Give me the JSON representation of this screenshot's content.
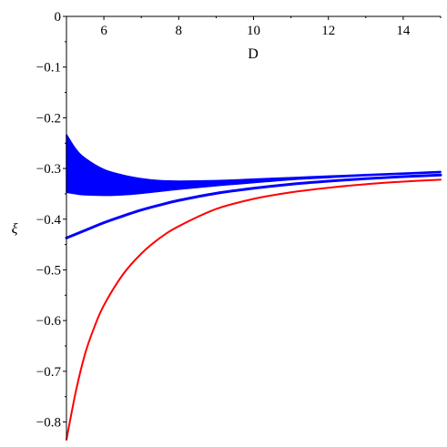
{
  "chart_data": {
    "type": "line",
    "xlabel": "D",
    "ylabel": "ξ",
    "xlim": [
      5,
      15
    ],
    "ylim": [
      -0.835,
      0
    ],
    "xticks": [
      6,
      8,
      10,
      12,
      14
    ],
    "yticks": [
      0,
      -0.1,
      -0.2,
      -0.3,
      -0.4,
      -0.5,
      -0.6,
      -0.7,
      -0.8
    ],
    "x_axis_position": "top",
    "grid": false,
    "legend": false,
    "colors": {
      "blue": "#0000ff",
      "red": "#ff0000"
    },
    "series": [
      {
        "style": "band",
        "color": "#0000ff",
        "x": [
          5.0,
          5.25,
          5.5,
          6.0,
          6.5,
          7.0,
          7.5,
          8.0,
          9.0,
          10.0,
          11.0,
          12.0,
          13.0,
          14.0,
          15.0
        ],
        "upper": [
          -0.233,
          -0.262,
          -0.28,
          -0.302,
          -0.313,
          -0.32,
          -0.324,
          -0.325,
          -0.324,
          -0.321,
          -0.318,
          -0.315,
          -0.312,
          -0.309,
          -0.306
        ],
        "lower": [
          -0.347,
          -0.35,
          -0.352,
          -0.353,
          -0.352,
          -0.349,
          -0.345,
          -0.341,
          -0.334,
          -0.328,
          -0.322,
          -0.318,
          -0.314,
          -0.311,
          -0.308
        ]
      },
      {
        "style": "line",
        "color": "#0000ff",
        "x": [
          5.0,
          5.5,
          6.0,
          6.5,
          7.0,
          7.5,
          8.0,
          9.0,
          10.0,
          11.0,
          12.0,
          13.0,
          14.0,
          15.0
        ],
        "y": [
          -0.437,
          -0.422,
          -0.407,
          -0.394,
          -0.382,
          -0.372,
          -0.363,
          -0.349,
          -0.339,
          -0.331,
          -0.325,
          -0.32,
          -0.316,
          -0.313
        ]
      },
      {
        "style": "line",
        "color": "#ff0000",
        "x": [
          5.0,
          5.25,
          5.5,
          5.75,
          6.0,
          6.5,
          7.0,
          7.5,
          8.0,
          9.0,
          10.0,
          11.0,
          12.0,
          13.0,
          14.0,
          15.0
        ],
        "y": [
          -0.835,
          -0.74,
          -0.665,
          -0.612,
          -0.57,
          -0.51,
          -0.468,
          -0.437,
          -0.414,
          -0.38,
          -0.36,
          -0.347,
          -0.338,
          -0.331,
          -0.326,
          -0.322
        ]
      }
    ]
  }
}
